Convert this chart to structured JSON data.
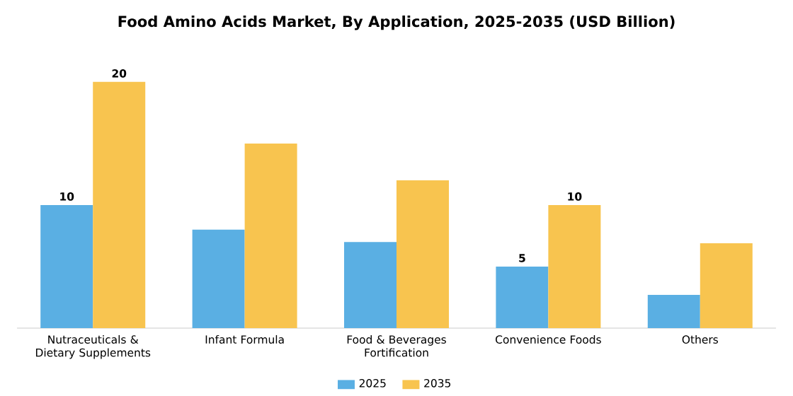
{
  "chart_data": {
    "type": "bar",
    "title": "Food Amino Acids Market, By Application, 2025-2035 (USD Billion)",
    "categories": [
      "Nutraceuticals & Dietary Supplements",
      "Infant Formula",
      "Food & Beverages Fortification",
      "Convenience Foods",
      "Others"
    ],
    "series": [
      {
        "name": "2025",
        "color": "#5aafe3",
        "values": [
          10,
          8,
          7,
          5,
          2.7
        ],
        "value_labels": [
          "10",
          null,
          null,
          "5",
          null
        ]
      },
      {
        "name": "2035",
        "color": "#f8c44f",
        "values": [
          20,
          15,
          12,
          10,
          6.9
        ],
        "value_labels": [
          "20",
          null,
          null,
          "10",
          null
        ]
      }
    ],
    "legend": "bottom"
  }
}
